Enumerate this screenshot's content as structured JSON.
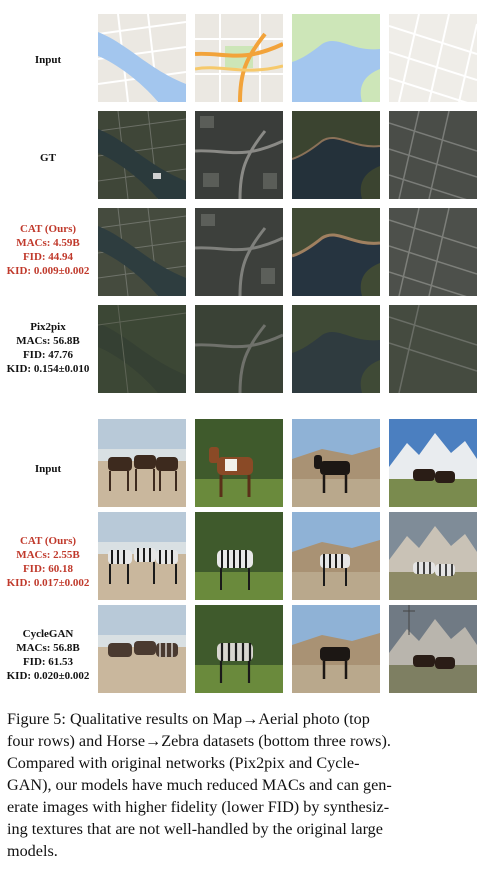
{
  "figure": {
    "rows": [
      {
        "lines": [
          "Input"
        ],
        "highlight": false
      },
      {
        "lines": [
          "GT"
        ],
        "highlight": false
      },
      {
        "lines": [
          "CAT (Ours)",
          "MACs: 4.59B",
          "FID: 44.94",
          "KID: 0.009±0.002"
        ],
        "highlight": true
      },
      {
        "lines": [
          "Pix2pix",
          "MACs: 56.8B",
          "FID: 47.76",
          "KID: 0.154±0.010"
        ],
        "highlight": false
      },
      {
        "lines": [
          "Input"
        ],
        "highlight": false
      },
      {
        "lines": [
          "CAT (Ours)",
          "MACs: 2.55B",
          "FID: 60.18",
          "KID: 0.017±0.002"
        ],
        "highlight": true
      },
      {
        "lines": [
          "CycleGAN",
          "MACs: 56.8B",
          "FID: 61.53",
          "KID: 0.020±0.002"
        ],
        "highlight": false
      }
    ],
    "colors": {
      "highlight": "#c0392b",
      "map_land": "#ebe8e2",
      "map_water": "#a3c6ee",
      "map_park": "#cde6b8",
      "aerial": "#343a30",
      "sky": "#8fb2d6",
      "grass": "#5f7a3a",
      "sand": "#c9b79d"
    }
  },
  "caption": {
    "lines": [
      "Figure 5: Qualitative results on Map→Aerial photo (top",
      "four rows) and Horse→Zebra datasets (bottom three rows).",
      "Compared with original networks (Pix2pix and Cycle-",
      "GAN), our models have much reduced MACs and can gen-",
      "erate images with higher fidelity (lower FID) by synthesiz-",
      "ing textures that are not well-handled by the original large",
      "models."
    ]
  }
}
